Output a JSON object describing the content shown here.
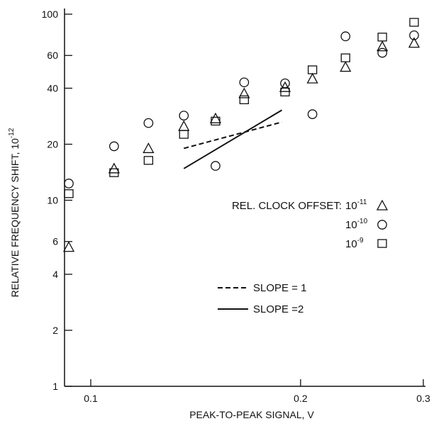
{
  "chart_data": {
    "type": "scatter",
    "title": "",
    "xlabel": "PEAK-TO-PEAK SIGNAL, V",
    "ylabel": "RELATIVE FREQUENCY SHIFT, 10",
    "ylabel_exponent": "-12",
    "xscale": "log",
    "yscale": "log",
    "xlim": [
      0.092,
      0.3
    ],
    "ylim": [
      1,
      100
    ],
    "grid": false,
    "x_ticks": [
      {
        "value": 0.1,
        "label": "0.1"
      },
      {
        "value": 0.2,
        "label": "0.2"
      },
      {
        "value": 0.3,
        "label": "0.3"
      }
    ],
    "y_ticks": [
      {
        "value": 1,
        "label": "1"
      },
      {
        "value": 2,
        "label": "2"
      },
      {
        "value": 4,
        "label": "4"
      },
      {
        "value": 6,
        "label": "6"
      },
      {
        "value": 10,
        "label": "10"
      },
      {
        "value": 20,
        "label": "20"
      },
      {
        "value": 40,
        "label": "40"
      },
      {
        "value": 60,
        "label": "60"
      },
      {
        "value": 100,
        "label": "100"
      }
    ],
    "legend": {
      "placement": "right",
      "title": "REL. CLOCK OFFSET:",
      "base": "10"
    },
    "series": [
      {
        "exponent": "-11",
        "marker": "triangle",
        "points": [
          {
            "x": 0.093,
            "y": 5.6
          },
          {
            "x": 0.108,
            "y": 14.8
          },
          {
            "x": 0.121,
            "y": 19
          },
          {
            "x": 0.136,
            "y": 25
          },
          {
            "x": 0.151,
            "y": 27.5
          },
          {
            "x": 0.166,
            "y": 37.5
          },
          {
            "x": 0.19,
            "y": 40.5
          },
          {
            "x": 0.208,
            "y": 45
          },
          {
            "x": 0.232,
            "y": 52
          },
          {
            "x": 0.262,
            "y": 67
          },
          {
            "x": 0.291,
            "y": 70
          }
        ]
      },
      {
        "exponent": "-10",
        "marker": "circle",
        "points": [
          {
            "x": 0.093,
            "y": 12.3
          },
          {
            "x": 0.108,
            "y": 19.5
          },
          {
            "x": 0.121,
            "y": 26
          },
          {
            "x": 0.136,
            "y": 28.5
          },
          {
            "x": 0.151,
            "y": 15.3
          },
          {
            "x": 0.166,
            "y": 43
          },
          {
            "x": 0.19,
            "y": 42.5
          },
          {
            "x": 0.208,
            "y": 29
          },
          {
            "x": 0.232,
            "y": 76
          },
          {
            "x": 0.262,
            "y": 62
          },
          {
            "x": 0.291,
            "y": 77
          }
        ]
      },
      {
        "exponent": "-9",
        "marker": "square",
        "points": [
          {
            "x": 0.093,
            "y": 10.8
          },
          {
            "x": 0.108,
            "y": 14
          },
          {
            "x": 0.121,
            "y": 16.3
          },
          {
            "x": 0.136,
            "y": 22.5
          },
          {
            "x": 0.151,
            "y": 26.5
          },
          {
            "x": 0.166,
            "y": 34.5
          },
          {
            "x": 0.19,
            "y": 38
          },
          {
            "x": 0.208,
            "y": 50
          },
          {
            "x": 0.232,
            "y": 58
          },
          {
            "x": 0.262,
            "y": 75
          },
          {
            "x": 0.291,
            "y": 90
          }
        ]
      }
    ],
    "lines": [
      {
        "label": "SLOPE = 1",
        "style": "dashed",
        "x": [
          0.136,
          0.188
        ],
        "y": [
          19,
          26.3
        ]
      },
      {
        "label": "SLOPE =2",
        "style": "solid",
        "x": [
          0.136,
          0.188
        ],
        "y": [
          14.8,
          30.5
        ]
      }
    ]
  }
}
